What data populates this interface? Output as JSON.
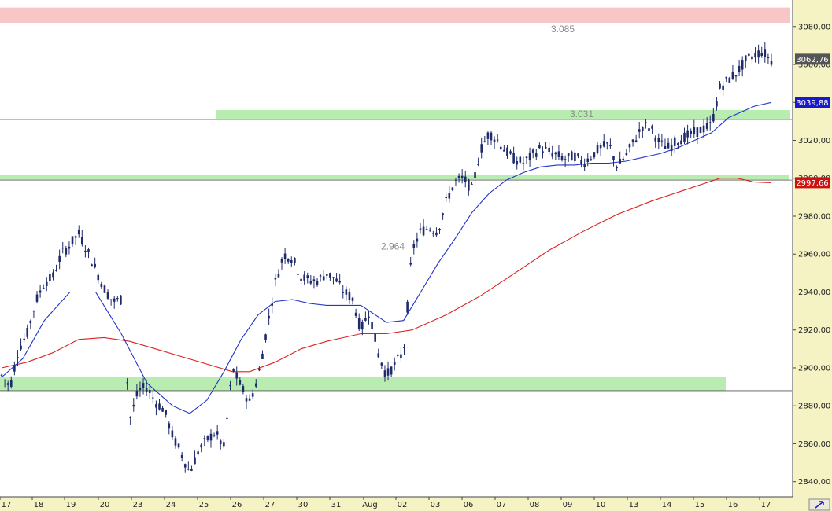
{
  "chart_data": {
    "type": "candlestick",
    "title": "",
    "xlabel": "",
    "ylabel": "",
    "ylim": [
      2832,
      3094
    ],
    "y_ticks": [
      "2840,00",
      "2860,00",
      "2880,00",
      "2900,00",
      "2920,00",
      "2940,00",
      "2960,00",
      "2980,00",
      "3000,00",
      "3020,00",
      "3040,00",
      "3060,00",
      "3080,00"
    ],
    "y_tick_values": [
      2840,
      2860,
      2880,
      2900,
      2920,
      2940,
      2960,
      2980,
      3000,
      3020,
      3040,
      3060,
      3080
    ],
    "x_ticks": [
      "17",
      "18",
      "19",
      "20",
      "23",
      "24",
      "25",
      "26",
      "27",
      "30",
      "31",
      "Aug",
      "02",
      "03",
      "06",
      "07",
      "08",
      "09",
      "10",
      "13",
      "14",
      "15",
      "16",
      "17"
    ],
    "grid": false,
    "legend": "none",
    "colors": {
      "candles": "#1f2a6b",
      "ma_short": "#2233cc",
      "ma_long": "#dd2222",
      "support_zone": "#b8ecb0",
      "resistance_zone": "#f8c6c6",
      "axis_bg": "#f5f3c4"
    },
    "zones": [
      {
        "label": "3.085",
        "y_low": 3082,
        "y_high": 3090,
        "type": "resistance"
      },
      {
        "label": "3.031",
        "y_low": 3031,
        "y_high": 3036,
        "type": "support"
      },
      {
        "label": "",
        "y_low": 2999,
        "y_high": 3002,
        "type": "support"
      },
      {
        "label": "",
        "y_low": 2888,
        "y_high": 2895,
        "type": "support"
      }
    ],
    "annotations": [
      {
        "text": "2.964",
        "value": 2964
      }
    ],
    "horizontal_lines": [
      3031,
      2999,
      2888
    ],
    "price_tags": [
      {
        "text": "3062,76",
        "value": 3062.76,
        "color": "#555555"
      },
      {
        "text": "3039,88",
        "value": 3039.88,
        "color": "#1a1acc"
      },
      {
        "text": "2997,66",
        "value": 2997.66,
        "color": "#cc1111"
      }
    ],
    "candle_points": [
      [
        0,
        2896
      ],
      [
        2,
        2890
      ],
      [
        4,
        2910
      ],
      [
        6,
        2918
      ],
      [
        8,
        2935
      ],
      [
        10,
        2945
      ],
      [
        12,
        2948
      ],
      [
        14,
        2960
      ],
      [
        16,
        2965
      ],
      [
        18,
        2971
      ],
      [
        20,
        2962
      ],
      [
        22,
        2952
      ],
      [
        24,
        2942
      ],
      [
        26,
        2935
      ],
      [
        28,
        2936
      ],
      [
        30,
        2873
      ],
      [
        32,
        2888
      ],
      [
        34,
        2890
      ],
      [
        36,
        2882
      ],
      [
        38,
        2878
      ],
      [
        40,
        2864
      ],
      [
        42,
        2855
      ],
      [
        44,
        2845
      ],
      [
        46,
        2856
      ],
      [
        48,
        2862
      ],
      [
        50,
        2866
      ],
      [
        52,
        2858
      ],
      [
        54,
        2900
      ],
      [
        56,
        2890
      ],
      [
        58,
        2882
      ],
      [
        60,
        2895
      ],
      [
        62,
        2920
      ],
      [
        64,
        2945
      ],
      [
        66,
        2960
      ],
      [
        68,
        2958
      ],
      [
        70,
        2948
      ],
      [
        72,
        2946
      ],
      [
        74,
        2946
      ],
      [
        76,
        2950
      ],
      [
        78,
        2947
      ],
      [
        80,
        2940
      ],
      [
        82,
        2937
      ],
      [
        84,
        2920
      ],
      [
        86,
        2930
      ],
      [
        88,
        2908
      ],
      [
        90,
        2896
      ],
      [
        92,
        2902
      ],
      [
        94,
        2908
      ],
      [
        96,
        2962
      ],
      [
        98,
        2972
      ],
      [
        100,
        2974
      ],
      [
        102,
        2972
      ],
      [
        104,
        2988
      ],
      [
        106,
        2998
      ],
      [
        108,
        3000
      ],
      [
        110,
        2994
      ],
      [
        112,
        3015
      ],
      [
        114,
        3024
      ],
      [
        116,
        3020
      ],
      [
        118,
        3014
      ],
      [
        120,
        3010
      ],
      [
        122,
        3008
      ],
      [
        124,
        3012
      ],
      [
        126,
        3016
      ],
      [
        128,
        3014
      ],
      [
        130,
        3012
      ],
      [
        132,
        3010
      ],
      [
        134,
        3012
      ],
      [
        136,
        3008
      ],
      [
        138,
        3012
      ],
      [
        140,
        3016
      ],
      [
        142,
        3018
      ],
      [
        144,
        3006
      ],
      [
        146,
        3012
      ],
      [
        148,
        3020
      ],
      [
        150,
        3028
      ],
      [
        152,
        3026
      ],
      [
        154,
        3018
      ],
      [
        156,
        3016
      ],
      [
        158,
        3020
      ],
      [
        160,
        3022
      ],
      [
        162,
        3024
      ],
      [
        164,
        3026
      ],
      [
        166,
        3028
      ],
      [
        168,
        3048
      ],
      [
        170,
        3052
      ],
      [
        172,
        3056
      ],
      [
        174,
        3062
      ],
      [
        176,
        3065
      ],
      [
        178,
        3067
      ],
      [
        180,
        3062
      ]
    ],
    "ma_short_points": [
      [
        0,
        2895
      ],
      [
        5,
        2905
      ],
      [
        10,
        2925
      ],
      [
        16,
        2940
      ],
      [
        22,
        2940
      ],
      [
        28,
        2918
      ],
      [
        34,
        2892
      ],
      [
        40,
        2880
      ],
      [
        44,
        2876
      ],
      [
        48,
        2883
      ],
      [
        52,
        2898
      ],
      [
        56,
        2915
      ],
      [
        60,
        2928
      ],
      [
        64,
        2935
      ],
      [
        68,
        2936
      ],
      [
        72,
        2934
      ],
      [
        76,
        2933
      ],
      [
        80,
        2933
      ],
      [
        84,
        2933
      ],
      [
        86,
        2930
      ],
      [
        90,
        2924
      ],
      [
        94,
        2925
      ],
      [
        98,
        2940
      ],
      [
        102,
        2955
      ],
      [
        106,
        2968
      ],
      [
        110,
        2982
      ],
      [
        114,
        2992
      ],
      [
        118,
        2999
      ],
      [
        122,
        3003
      ],
      [
        126,
        3006
      ],
      [
        130,
        3007
      ],
      [
        134,
        3007
      ],
      [
        138,
        3008
      ],
      [
        142,
        3008
      ],
      [
        146,
        3009
      ],
      [
        150,
        3011
      ],
      [
        154,
        3013
      ],
      [
        158,
        3016
      ],
      [
        162,
        3020
      ],
      [
        166,
        3024
      ],
      [
        170,
        3032
      ],
      [
        176,
        3038
      ],
      [
        180,
        3040
      ]
    ],
    "ma_long_points": [
      [
        0,
        2900
      ],
      [
        6,
        2903
      ],
      [
        12,
        2908
      ],
      [
        18,
        2915
      ],
      [
        24,
        2916
      ],
      [
        30,
        2914
      ],
      [
        36,
        2910
      ],
      [
        42,
        2906
      ],
      [
        48,
        2902
      ],
      [
        54,
        2898
      ],
      [
        58,
        2898
      ],
      [
        64,
        2903
      ],
      [
        70,
        2910
      ],
      [
        76,
        2914
      ],
      [
        80,
        2916
      ],
      [
        84,
        2918
      ],
      [
        90,
        2918
      ],
      [
        96,
        2920
      ],
      [
        104,
        2928
      ],
      [
        112,
        2938
      ],
      [
        120,
        2950
      ],
      [
        128,
        2962
      ],
      [
        136,
        2972
      ],
      [
        144,
        2981
      ],
      [
        152,
        2988
      ],
      [
        160,
        2994
      ],
      [
        168,
        3000
      ],
      [
        172,
        3000
      ],
      [
        176,
        2998
      ],
      [
        180,
        2997.66
      ]
    ]
  }
}
